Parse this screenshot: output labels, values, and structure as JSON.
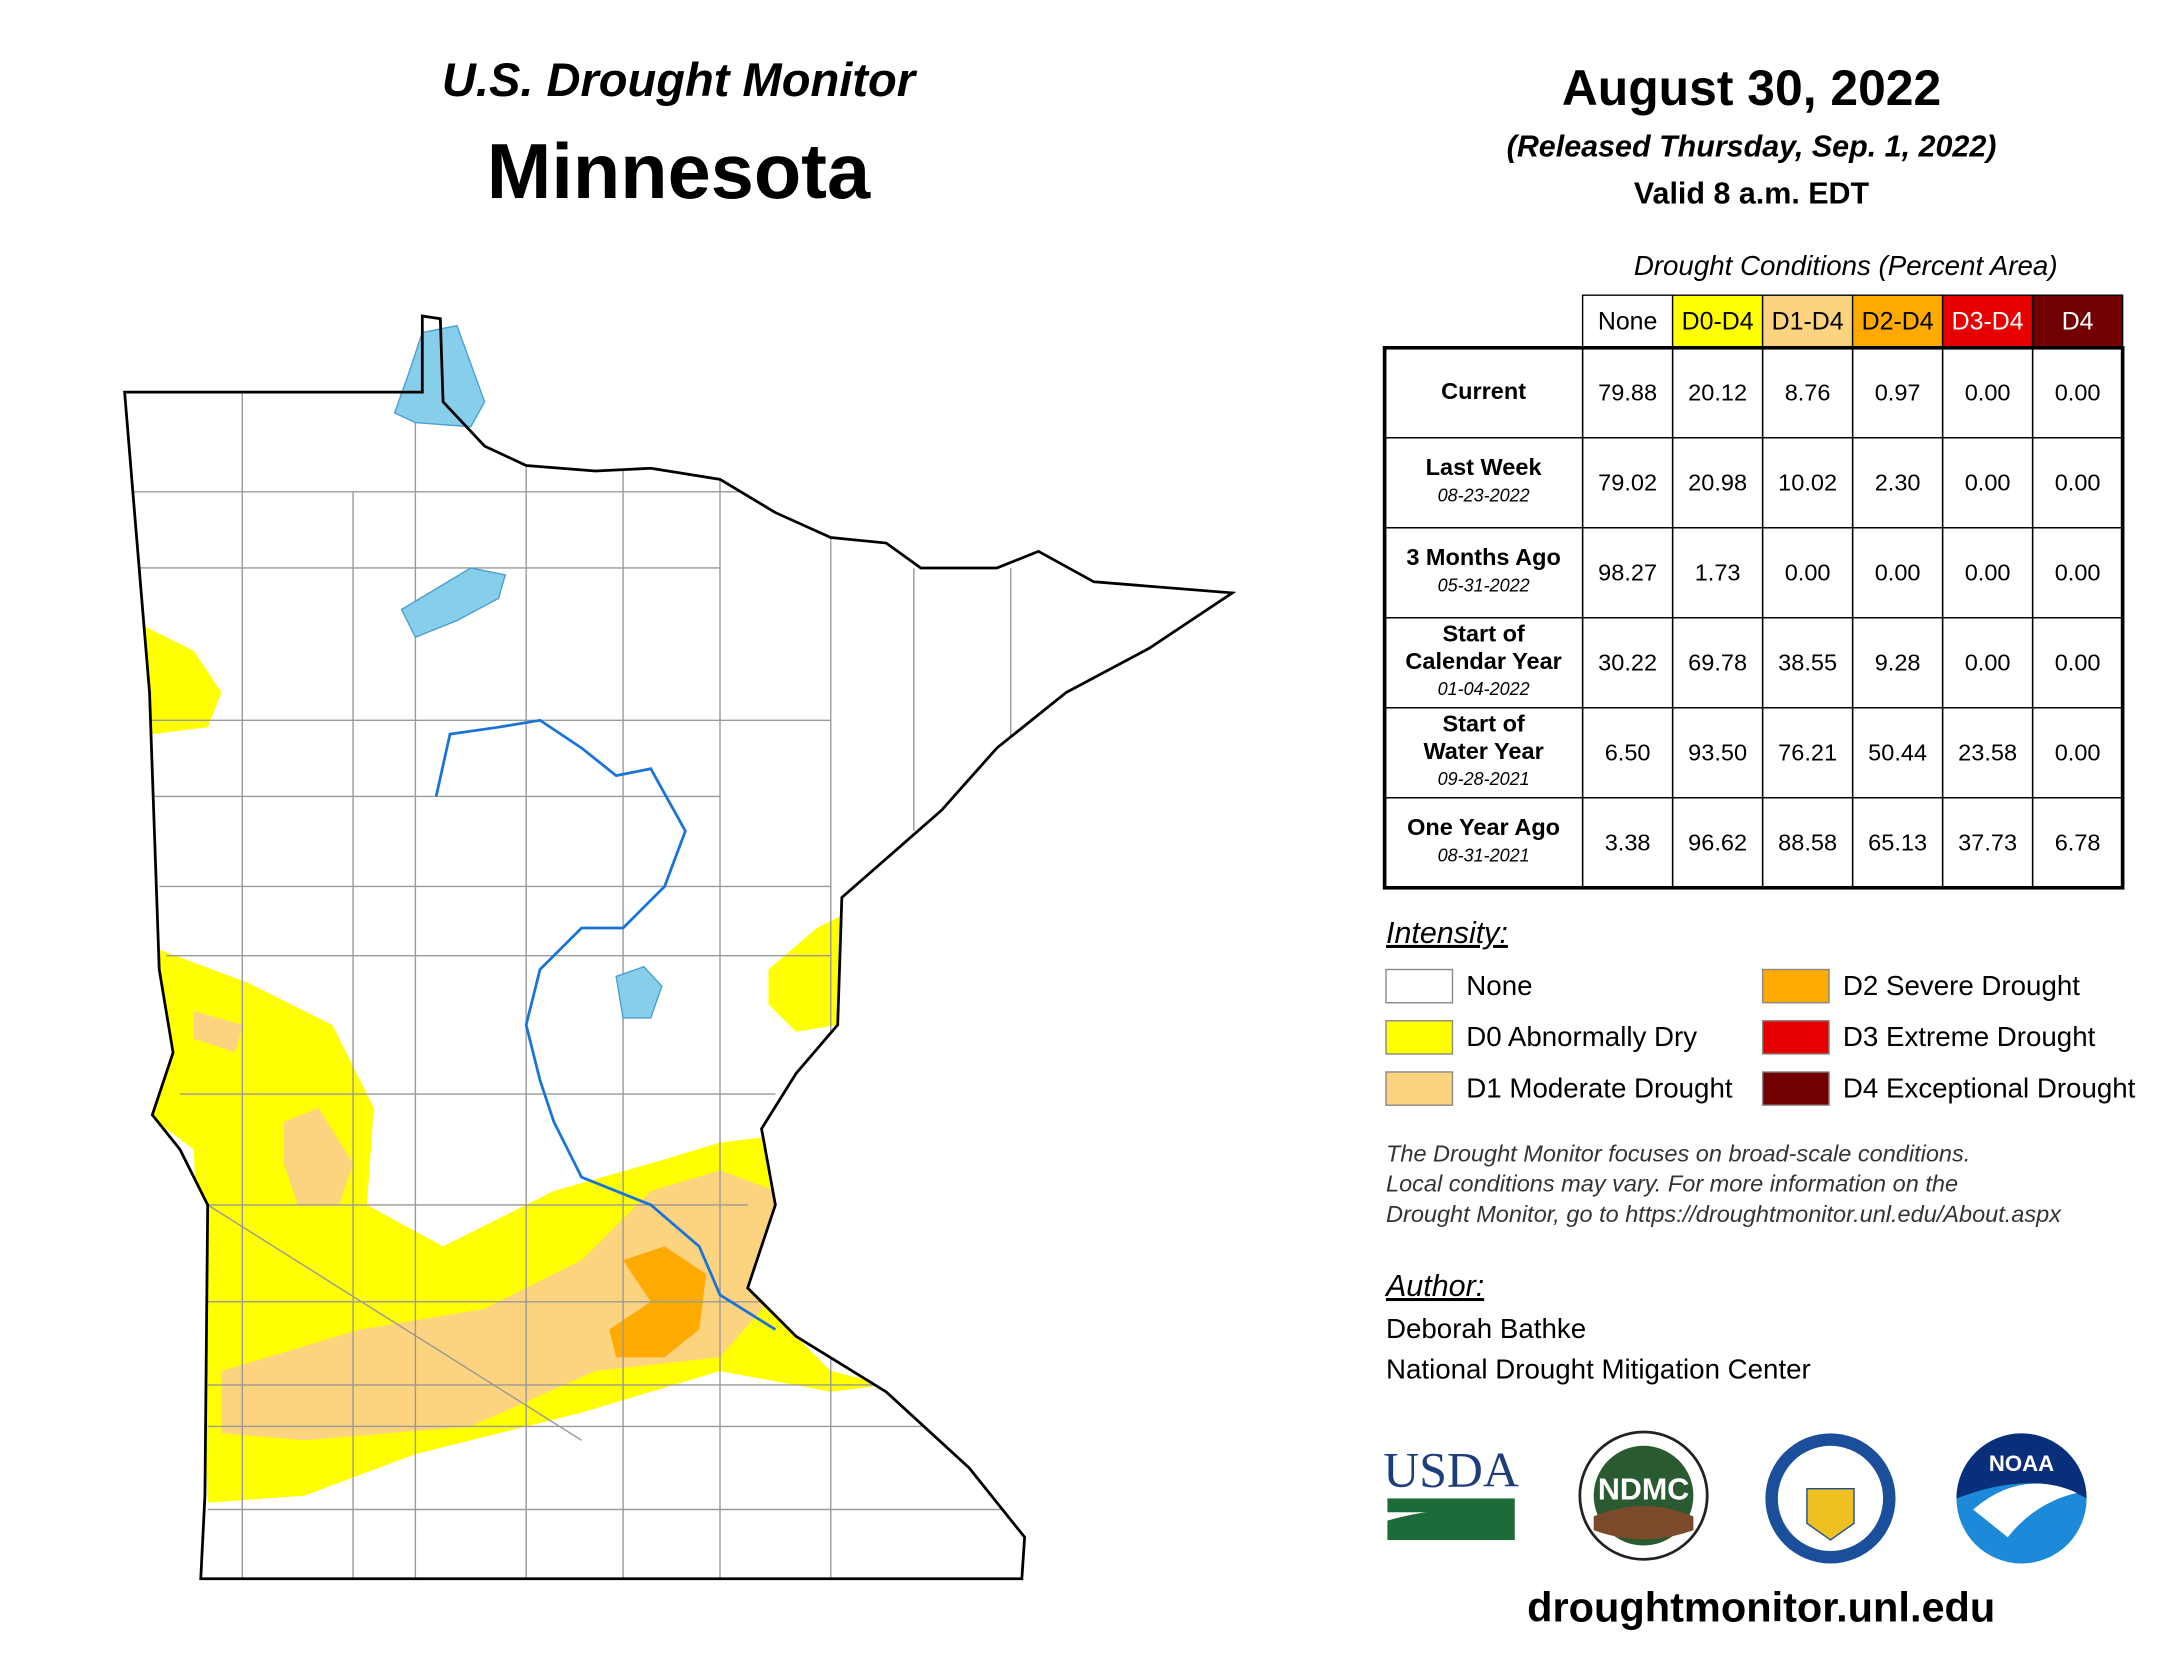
{
  "header": {
    "title": "U.S. Drought Monitor",
    "state": "Minnesota",
    "date": "August 30, 2022",
    "released": "(Released Thursday, Sep. 1, 2022)",
    "valid": "Valid 8 a.m. EDT"
  },
  "table": {
    "caption": "Drought Conditions (Percent Area)",
    "columns": [
      {
        "label": "None",
        "color": "#ffffff",
        "text": "#000000"
      },
      {
        "label": "D0-D4",
        "color": "#ffff00",
        "text": "#000000"
      },
      {
        "label": "D1-D4",
        "color": "#fcd37f",
        "text": "#000000"
      },
      {
        "label": "D2-D4",
        "color": "#ffaa00",
        "text": "#000000"
      },
      {
        "label": "D3-D4",
        "color": "#e60000",
        "text": "#ffffff"
      },
      {
        "label": "D4",
        "color": "#730000",
        "text": "#ffffff"
      }
    ],
    "rows": [
      {
        "label": [
          "Current"
        ],
        "date": null,
        "values": [
          "79.88",
          "20.12",
          "8.76",
          "0.97",
          "0.00",
          "0.00"
        ]
      },
      {
        "label": [
          "Last Week"
        ],
        "date": "08-23-2022",
        "values": [
          "79.02",
          "20.98",
          "10.02",
          "2.30",
          "0.00",
          "0.00"
        ]
      },
      {
        "label": [
          "3 Months Ago"
        ],
        "date": "05-31-2022",
        "values": [
          "98.27",
          "1.73",
          "0.00",
          "0.00",
          "0.00",
          "0.00"
        ]
      },
      {
        "label": [
          "Start of",
          "Calendar Year"
        ],
        "date": "01-04-2022",
        "values": [
          "30.22",
          "69.78",
          "38.55",
          "9.28",
          "0.00",
          "0.00"
        ]
      },
      {
        "label": [
          "Start of",
          "Water Year"
        ],
        "date": "09-28-2021",
        "values": [
          "6.50",
          "93.50",
          "76.21",
          "50.44",
          "23.58",
          "0.00"
        ]
      },
      {
        "label": [
          "One Year Ago"
        ],
        "date": "08-31-2021",
        "values": [
          "3.38",
          "96.62",
          "88.58",
          "65.13",
          "37.73",
          "6.78"
        ]
      }
    ]
  },
  "legend": {
    "title": "Intensity:",
    "items": [
      {
        "label": "None",
        "color": "#ffffff"
      },
      {
        "label": "D0 Abnormally Dry",
        "color": "#ffff00"
      },
      {
        "label": "D1 Moderate Drought",
        "color": "#fcd37f"
      },
      {
        "label": "D2 Severe Drought",
        "color": "#ffaa00"
      },
      {
        "label": "D3 Extreme Drought",
        "color": "#e60000"
      },
      {
        "label": "D4 Exceptional Drought",
        "color": "#730000"
      }
    ]
  },
  "note": [
    "The Drought Monitor focuses on broad-scale conditions.",
    "Local conditions may vary. For more information on the",
    "Drought Monitor, go to https://droughtmonitor.unl.edu/About.aspx"
  ],
  "author": {
    "title": "Author:",
    "lines": [
      "Deborah Bathke",
      "National Drought Mitigation Center"
    ]
  },
  "logos": [
    "USDA",
    "NDMC",
    "NOAA"
  ],
  "url": "droughtmonitor.unl.edu"
}
